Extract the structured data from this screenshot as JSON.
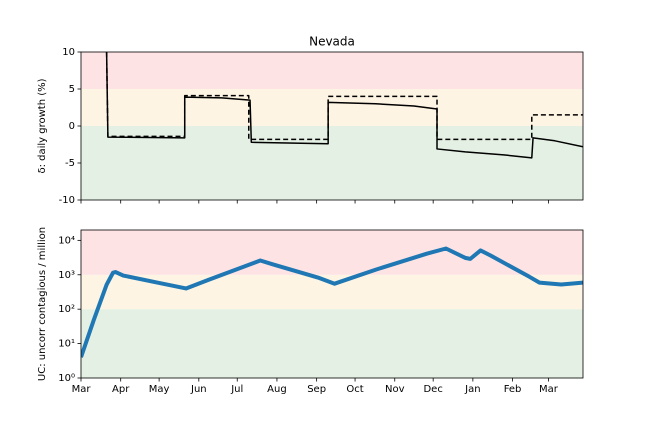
{
  "chart_data": [
    {
      "type": "line",
      "title": "Nevada",
      "ylabel": "δ: daily growth (%)",
      "xlim": [
        0,
        392
      ],
      "xticks": [
        0,
        31,
        61,
        92,
        122,
        153,
        184,
        214,
        245,
        275,
        306,
        337,
        365
      ],
      "ylim": [
        -10,
        10
      ],
      "yticks": [
        -10,
        -5,
        0,
        5,
        10
      ],
      "log": false,
      "bands": [
        {
          "from": -10,
          "to": 0,
          "color": "#e4f0e3"
        },
        {
          "from": 0,
          "to": 5,
          "color": "#fdf4e3"
        },
        {
          "from": 5,
          "to": 10,
          "color": "#fde3e4"
        }
      ],
      "series": [
        {
          "color": "#000000",
          "dash": false,
          "width": 1.5,
          "x": [
            20,
            21,
            81,
            81,
            110,
            132,
            133,
            193,
            193,
            230,
            260,
            278,
            278,
            300,
            330,
            352,
            353,
            370,
            392
          ],
          "values": [
            10,
            -1.5,
            -1.6,
            3.9,
            3.8,
            3.5,
            -2.2,
            -2.4,
            3.2,
            3.0,
            2.7,
            2.3,
            -3.1,
            -3.5,
            -3.9,
            -4.3,
            -1.6,
            -2.0,
            -2.8
          ]
        },
        {
          "color": "#000000",
          "dash": true,
          "width": 1.5,
          "x": [
            20,
            21,
            81,
            81,
            131,
            131,
            193,
            193,
            278,
            278,
            352,
            352,
            392
          ],
          "values": [
            10,
            -1.4,
            -1.4,
            4.1,
            4.1,
            -1.8,
            -1.8,
            4.0,
            4.0,
            -1.8,
            -1.8,
            1.5,
            1.5
          ]
        }
      ]
    },
    {
      "type": "line",
      "ylabel": "UC: uncorr contagious / million",
      "xlim": [
        0,
        392
      ],
      "xticks": [
        {
          "value": 0,
          "label": "Mar"
        },
        {
          "value": 31,
          "label": "Apr"
        },
        {
          "value": 61,
          "label": "May"
        },
        {
          "value": 92,
          "label": "Jun"
        },
        {
          "value": 122,
          "label": "Jul"
        },
        {
          "value": 153,
          "label": "Aug"
        },
        {
          "value": 184,
          "label": "Sep"
        },
        {
          "value": 214,
          "label": "Oct"
        },
        {
          "value": 245,
          "label": "Nov"
        },
        {
          "value": 275,
          "label": "Dec"
        },
        {
          "value": 306,
          "label": "Jan"
        },
        {
          "value": 337,
          "label": "Feb"
        },
        {
          "value": 365,
          "label": "Mar"
        }
      ],
      "ylim": [
        1,
        20000
      ],
      "yticks": [
        {
          "value": 1,
          "label": "10⁰"
        },
        {
          "value": 10,
          "label": "10¹"
        },
        {
          "value": 100,
          "label": "10²"
        },
        {
          "value": 1000,
          "label": "10³"
        },
        {
          "value": 10000,
          "label": "10⁴"
        }
      ],
      "log": true,
      "bands": [
        {
          "from": 1,
          "to": 100,
          "color": "#e4f0e3"
        },
        {
          "from": 100,
          "to": 1000,
          "color": "#fdf4e3"
        },
        {
          "from": 1000,
          "to": 20000,
          "color": "#fde3e4"
        }
      ],
      "series": [
        {
          "color": "#1f77b4",
          "dash": false,
          "width": 4,
          "x": [
            0,
            10,
            20,
            25,
            27,
            33,
            60,
            82,
            100,
            140,
            150,
            185,
            198,
            230,
            270,
            285,
            300,
            304,
            312,
            320,
            350,
            358,
            375,
            392
          ],
          "values": [
            4,
            49,
            514,
            1150,
            1200,
            950,
            590,
            400,
            720,
            2600,
            2000,
            830,
            550,
            1400,
            4100,
            5800,
            3100,
            2900,
            5100,
            3600,
            880,
            590,
            520,
            590
          ]
        }
      ]
    }
  ]
}
